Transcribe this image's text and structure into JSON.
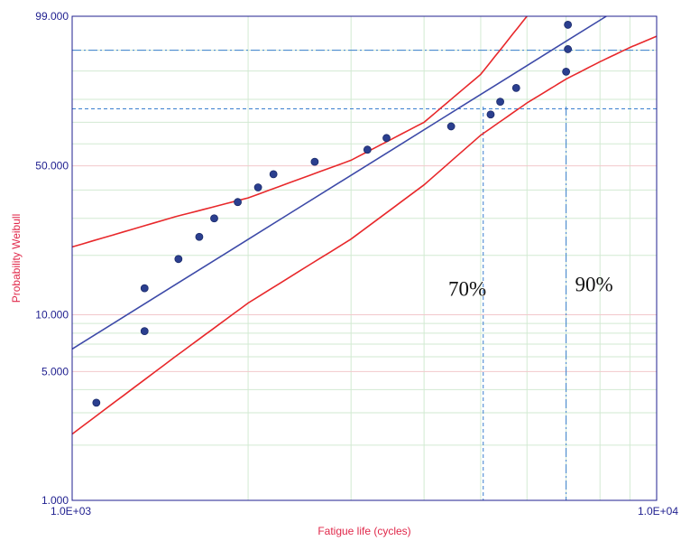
{
  "chart_data": {
    "type": "scatter",
    "title": "",
    "xlabel": "Fatigue life (cycles)",
    "ylabel": "Probability Weibull",
    "x_scale": "log",
    "y_scale": "weibull",
    "xlim": [
      1000,
      10000
    ],
    "ylim": [
      1.0,
      99.0
    ],
    "x_tick_labels": [
      "1.0E+03",
      "1.0E+04"
    ],
    "y_ticks": [
      1.0,
      5.0,
      10.0,
      50.0,
      99.0
    ],
    "y_tick_labels": [
      "1.000",
      "5.000",
      "10.000",
      "50.000",
      "99.000"
    ],
    "grid": true,
    "colors": {
      "points": "#2b3f8f",
      "fit_line": "#3d4aa8",
      "confidence_bounds": "#e8282b",
      "reference_lines": "#3a7fcf",
      "axis": "#1f1f8f"
    },
    "points": [
      {
        "x": 1100,
        "y": 3.4
      },
      {
        "x": 1330,
        "y": 8.2
      },
      {
        "x": 1330,
        "y": 13.7
      },
      {
        "x": 1520,
        "y": 19.2
      },
      {
        "x": 1650,
        "y": 24.6
      },
      {
        "x": 1750,
        "y": 30.0
      },
      {
        "x": 1920,
        "y": 35.5
      },
      {
        "x": 2080,
        "y": 41.0
      },
      {
        "x": 2210,
        "y": 46.4
      },
      {
        "x": 2600,
        "y": 51.8
      },
      {
        "x": 3200,
        "y": 57.3
      },
      {
        "x": 3450,
        "y": 62.7
      },
      {
        "x": 4450,
        "y": 68.1
      },
      {
        "x": 5200,
        "y": 73.5
      },
      {
        "x": 5400,
        "y": 79.0
      },
      {
        "x": 5750,
        "y": 84.4
      },
      {
        "x": 7000,
        "y": 89.8
      },
      {
        "x": 7050,
        "y": 95.2
      },
      {
        "x": 7050,
        "y": 98.4
      }
    ],
    "series": [
      {
        "values": [
          {
            "x": 1000,
            "y": 6.6
          },
          {
            "x": 8200,
            "y": 99.0
          }
        ]
      },
      {
        "values": [
          {
            "x": 1000,
            "y": 22.0
          },
          {
            "x": 1500,
            "y": 30.5
          },
          {
            "x": 2000,
            "y": 37.0
          },
          {
            "x": 3000,
            "y": 52.5
          },
          {
            "x": 4000,
            "y": 70.0
          },
          {
            "x": 5000,
            "y": 89.0
          },
          {
            "x": 6000,
            "y": 99.0
          }
        ]
      },
      {
        "values": [
          {
            "x": 1000,
            "y": 2.3
          },
          {
            "x": 1500,
            "y": 6.0
          },
          {
            "x": 2000,
            "y": 11.5
          },
          {
            "x": 3000,
            "y": 24.0
          },
          {
            "x": 4000,
            "y": 42.0
          },
          {
            "x": 5000,
            "y": 64.0
          },
          {
            "x": 6000,
            "y": 78.5
          },
          {
            "x": 7000,
            "y": 87.5
          },
          {
            "x": 8000,
            "y": 92.5
          },
          {
            "x": 9000,
            "y": 95.5
          },
          {
            "x": 10000,
            "y": 97.2
          }
        ]
      }
    ],
    "reference_lines": {
      "horizontal": [
        76.0,
        95.0
      ],
      "vertical": [
        5050,
        7000
      ]
    },
    "annotations": [
      {
        "text": "70%",
        "x": 4400,
        "y": 12.5
      },
      {
        "text": "90%",
        "x": 7250,
        "y": 13.2
      }
    ]
  }
}
